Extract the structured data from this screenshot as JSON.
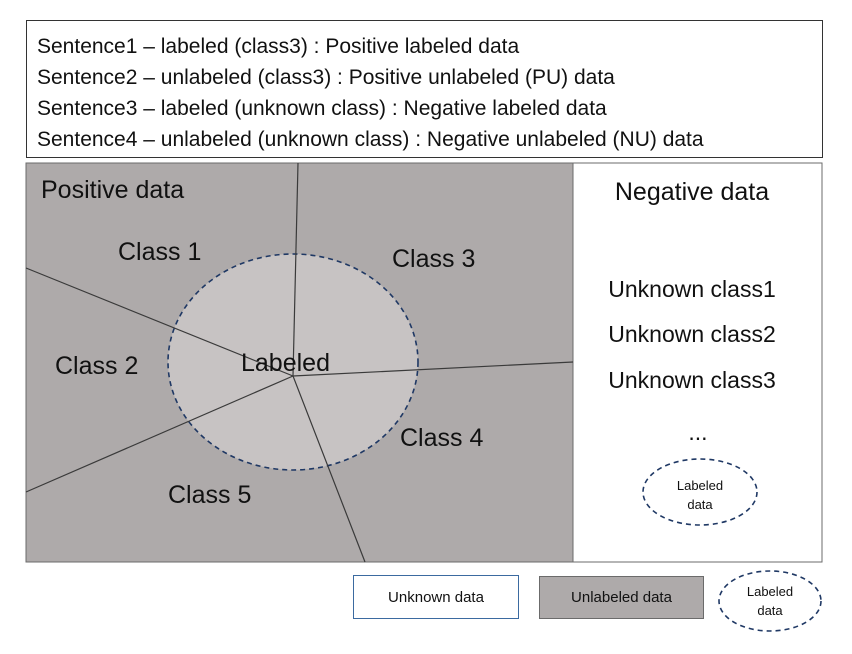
{
  "sentences": [
    "Sentence1 – labeled (class3)  : Positive labeled data",
    "Sentence2 – unlabeled (class3) : Positive unlabeled (PU) data",
    "Sentence3 – labeled (unknown class) : Negative labeled data",
    "Sentence4 – unlabeled (unknown class) : Negative unlabeled (NU) data"
  ],
  "positive": {
    "title": "Positive data",
    "classes": [
      "Class 1",
      "Class 2",
      "Class 3",
      "Class 4",
      "Class 5"
    ],
    "labeled": "Labeled"
  },
  "negative": {
    "title": "Negative data",
    "items": [
      "Unknown class1",
      "Unknown class2",
      "Unknown class3",
      "..."
    ],
    "labeled_line1": "Labeled",
    "labeled_line2": "data"
  },
  "legend": {
    "unknown": "Unknown data",
    "unlabeled": "Unlabeled data",
    "labeled_line1": "Labeled",
    "labeled_line2": "data"
  },
  "colors": {
    "unlabeled_fill": "#aeaaaa",
    "labeled_fill": "#c7c3c3",
    "dashed_border": "#1f3864",
    "divider_line": "#3a3a3a"
  }
}
